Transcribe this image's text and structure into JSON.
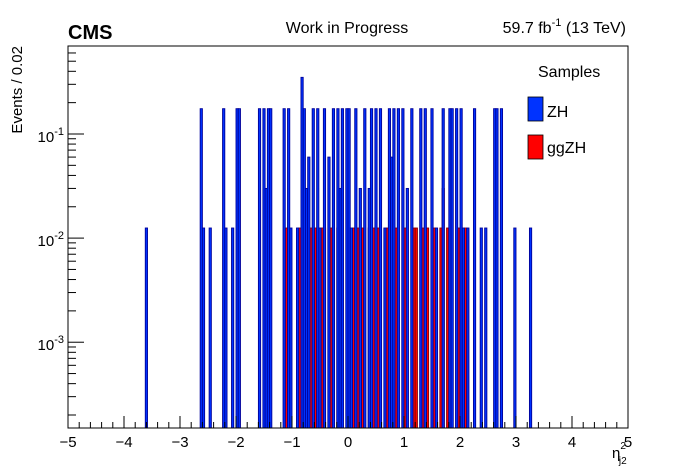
{
  "chart_data": {
    "type": "bar",
    "title": "Work in Progress",
    "experiment": "CMS",
    "luminosity": "59.7 fb",
    "luminosity_exp": "-1",
    "energy": "(13 TeV)",
    "ylabel": "Events / 0.02",
    "xlabel": "η",
    "xlabel_sup": "2",
    "xlabel_sub": "j2",
    "xlim": [
      -5,
      5
    ],
    "ylim": [
      0.00015,
      0.7
    ],
    "ylog": true,
    "bin_width": 0.04,
    "xticks": [
      -5,
      -4,
      -3,
      -2,
      -1,
      0,
      1,
      2,
      3,
      4,
      5
    ],
    "xtick_labels": [
      "−5",
      "−4",
      "−3",
      "−2",
      "−1",
      "0",
      "1",
      "2",
      "3",
      "4",
      "5"
    ],
    "yticks": [
      0.1,
      0.01,
      0.001
    ],
    "ytick_labels": [
      {
        "base": "10",
        "exp": "-1"
      },
      {
        "base": "10",
        "exp": "-2"
      },
      {
        "base": "10",
        "exp": "-3"
      }
    ],
    "legend": {
      "title": "Samples",
      "placement": "top-right"
    },
    "series": [
      {
        "name": "ZH",
        "color": "#0033ff",
        "edge": "#000099",
        "points": [
          [
            -3.6,
            0.0125
          ],
          [
            -2.62,
            0.175
          ],
          [
            -2.58,
            0.0125
          ],
          [
            -2.46,
            0.0125
          ],
          [
            -2.22,
            0.175
          ],
          [
            -2.18,
            0.0125
          ],
          [
            -2.06,
            0.0125
          ],
          [
            -1.98,
            0.175
          ],
          [
            -1.94,
            0.175
          ],
          [
            -1.58,
            0.175
          ],
          [
            -1.5,
            0.175
          ],
          [
            -1.46,
            0.03
          ],
          [
            -1.42,
            0.175
          ],
          [
            -1.38,
            0.175
          ],
          [
            -1.14,
            0.175
          ],
          [
            -1.06,
            0.175
          ],
          [
            -1.02,
            0.0125
          ],
          [
            -0.9,
            0.0125
          ],
          [
            -0.82,
            0.35
          ],
          [
            -0.78,
            0.175
          ],
          [
            -0.74,
            0.03
          ],
          [
            -0.7,
            0.06
          ],
          [
            -0.62,
            0.175
          ],
          [
            -0.54,
            0.175
          ],
          [
            -0.5,
            0.0125
          ],
          [
            -0.42,
            0.175
          ],
          [
            -0.34,
            0.06
          ],
          [
            -0.26,
            0.175
          ],
          [
            -0.18,
            0.175
          ],
          [
            -0.14,
            0.03
          ],
          [
            -0.1,
            0.175
          ],
          [
            -0.02,
            0.175
          ],
          [
            0.02,
            0.175
          ],
          [
            0.06,
            0.0125
          ],
          [
            0.14,
            0.175
          ],
          [
            0.22,
            0.03
          ],
          [
            0.3,
            0.175
          ],
          [
            0.38,
            0.03
          ],
          [
            0.42,
            0.175
          ],
          [
            0.5,
            0.175
          ],
          [
            0.58,
            0.175
          ],
          [
            0.66,
            0.0125
          ],
          [
            0.74,
            0.175
          ],
          [
            0.78,
            0.06
          ],
          [
            0.82,
            0.175
          ],
          [
            0.9,
            0.175
          ],
          [
            0.98,
            0.175
          ],
          [
            1.06,
            0.03
          ],
          [
            1.14,
            0.175
          ],
          [
            1.3,
            0.175
          ],
          [
            1.38,
            0.175
          ],
          [
            1.5,
            0.175
          ],
          [
            1.58,
            0.0125
          ],
          [
            1.7,
            0.175
          ],
          [
            1.82,
            0.175
          ],
          [
            1.86,
            0.175
          ],
          [
            1.94,
            0.175
          ],
          [
            2.02,
            0.175
          ],
          [
            2.06,
            0.0125
          ],
          [
            2.14,
            0.0125
          ],
          [
            2.26,
            0.175
          ],
          [
            2.38,
            0.0125
          ],
          [
            2.46,
            0.0125
          ],
          [
            2.62,
            0.175
          ],
          [
            2.66,
            0.175
          ],
          [
            2.74,
            0.175
          ],
          [
            2.98,
            0.0125
          ],
          [
            3.26,
            0.0125
          ]
        ]
      },
      {
        "name": "ggZH",
        "color": "#ff0000",
        "edge": "#880000",
        "points": [
          [
            -1.1,
            0.0125
          ],
          [
            -1.06,
            0.0125
          ],
          [
            -0.86,
            0.0125
          ],
          [
            -0.7,
            0.0125
          ],
          [
            -0.66,
            0.0125
          ],
          [
            -0.58,
            0.0125
          ],
          [
            -0.46,
            0.0125
          ],
          [
            -0.42,
            0.0125
          ],
          [
            -0.3,
            0.0125
          ],
          [
            -0.26,
            0.0125
          ],
          [
            -0.18,
            0.0125
          ],
          [
            0.1,
            0.0125
          ],
          [
            0.18,
            0.0125
          ],
          [
            0.26,
            0.0125
          ],
          [
            0.38,
            0.0125
          ],
          [
            0.46,
            0.0125
          ],
          [
            0.54,
            0.0125
          ],
          [
            0.7,
            0.0125
          ],
          [
            0.86,
            0.0125
          ],
          [
            1.02,
            0.0125
          ],
          [
            1.18,
            0.0125
          ],
          [
            1.22,
            0.0125
          ],
          [
            1.34,
            0.0125
          ],
          [
            1.42,
            0.0125
          ],
          [
            1.54,
            0.0125
          ],
          [
            1.66,
            0.0125
          ],
          [
            1.7,
            0.03
          ],
          [
            1.78,
            0.0125
          ],
          [
            1.98,
            0.0125
          ],
          [
            2.1,
            0.0125
          ]
        ]
      }
    ]
  }
}
